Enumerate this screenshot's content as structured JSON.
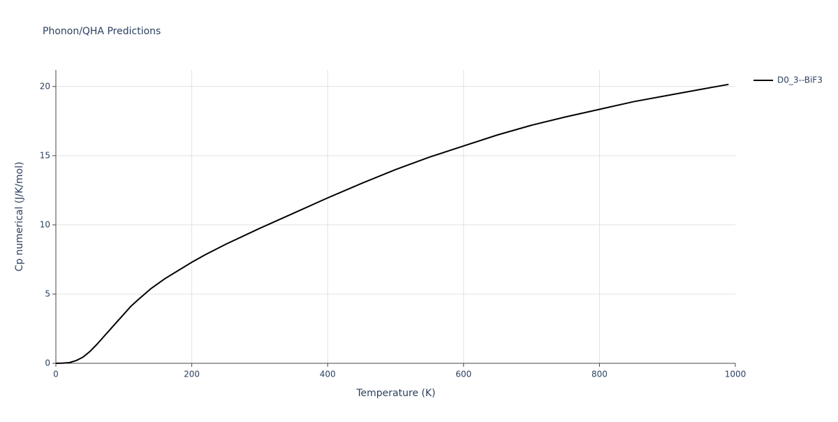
{
  "chart_data": {
    "type": "line",
    "title": "Phonon/QHA Predictions",
    "x_label": "Temperature (K)",
    "y_label": "Cp numerical (J/K/mol)",
    "x": [
      0,
      10,
      20,
      30,
      40,
      50,
      60,
      70,
      80,
      90,
      100,
      110,
      120,
      140,
      160,
      180,
      200,
      220,
      250,
      300,
      350,
      400,
      450,
      500,
      550,
      600,
      650,
      700,
      750,
      800,
      850,
      900,
      950,
      990
    ],
    "series": [
      {
        "name": "D0_3--BiF3",
        "color": "#000000",
        "values": [
          0,
          0.01,
          0.05,
          0.2,
          0.45,
          0.85,
          1.35,
          1.9,
          2.45,
          3.0,
          3.55,
          4.1,
          4.55,
          5.4,
          6.1,
          6.7,
          7.3,
          7.85,
          8.6,
          9.75,
          10.85,
          11.95,
          13.0,
          14.0,
          14.9,
          15.7,
          16.5,
          17.2,
          17.8,
          18.35,
          18.9,
          19.35,
          19.8,
          20.15
        ]
      }
    ],
    "xlim": [
      0,
      1000
    ],
    "xticks": [
      0,
      200,
      400,
      600,
      800,
      1000
    ],
    "ylim": [
      0,
      21.2
    ],
    "yticks": [
      0,
      5,
      10,
      15,
      20
    ],
    "grid": true,
    "legend": "right"
  }
}
